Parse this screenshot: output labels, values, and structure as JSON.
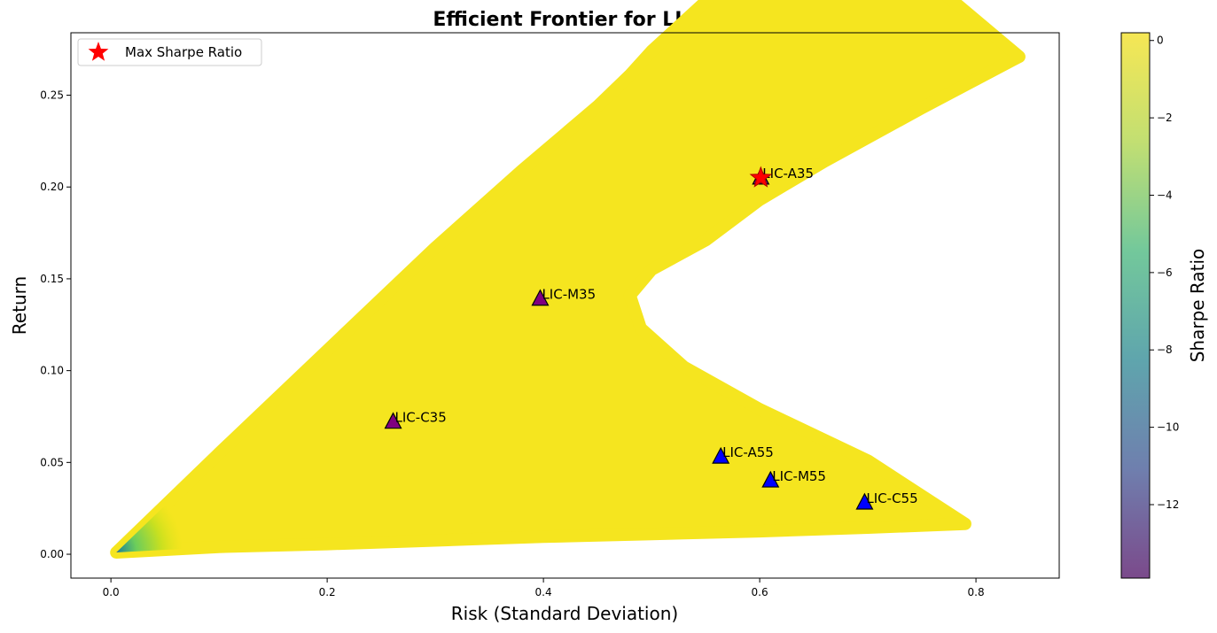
{
  "chart_data": {
    "type": "scatter",
    "title": "Efficient Frontier for LIC",
    "xlabel": "Risk (Standard Deviation)",
    "ylabel": "Return",
    "xlim": [
      -0.037,
      0.877
    ],
    "ylim": [
      -0.013,
      0.284
    ],
    "x_ticks": [
      "0.0",
      "0.2",
      "0.4",
      "0.6",
      "0.8"
    ],
    "y_ticks": [
      "0.00",
      "0.05",
      "0.10",
      "0.15",
      "0.20",
      "0.25"
    ],
    "grid": false,
    "legend": {
      "placement": "upper-left",
      "entries": [
        "Max Sharpe Ratio"
      ]
    },
    "colorbar": {
      "label": "Sharpe Ratio",
      "range": [
        -13.9,
        0.2
      ],
      "ticks": [
        "0",
        "−2",
        "−4",
        "−6",
        "−8",
        "−10",
        "−12"
      ],
      "colormap": "viridis"
    },
    "frontier_cloud": {
      "upper_edge": [
        [
          0.005,
          0.001
        ],
        [
          0.1,
          0.055
        ],
        [
          0.2,
          0.111
        ],
        [
          0.3,
          0.167
        ],
        [
          0.38,
          0.209
        ],
        [
          0.45,
          0.244
        ],
        [
          0.48,
          0.261
        ],
        [
          0.5,
          0.274
        ],
        [
          0.55,
          0.301
        ],
        [
          0.6,
          0.338
        ],
        [
          0.62,
          0.357
        ],
        [
          0.63,
          0.375
        ]
      ],
      "lower_edge": [
        [
          0.005,
          0.001
        ],
        [
          0.1,
          0.004
        ],
        [
          0.2,
          0.0055
        ],
        [
          0.3,
          0.0075
        ],
        [
          0.4,
          0.0095
        ],
        [
          0.5,
          0.011
        ],
        [
          0.6,
          0.0125
        ],
        [
          0.7,
          0.0145
        ],
        [
          0.79,
          0.0165
        ]
      ],
      "right_edge": [
        [
          0.84,
          0.271
        ],
        [
          0.75,
          0.243
        ],
        [
          0.66,
          0.214
        ],
        [
          0.6,
          0.193
        ],
        [
          0.55,
          0.171
        ],
        [
          0.5,
          0.155
        ],
        [
          0.48,
          0.141
        ],
        [
          0.49,
          0.123
        ],
        [
          0.53,
          0.102
        ],
        [
          0.6,
          0.079
        ],
        [
          0.7,
          0.051
        ],
        [
          0.79,
          0.0165
        ]
      ]
    },
    "max_sharpe": {
      "x": 0.601,
      "y": 0.205,
      "color": "#ff0000"
    },
    "funds": [
      {
        "label": "LIC-A35",
        "x": 0.601,
        "y": 0.205,
        "color": "#800080"
      },
      {
        "label": "LIC-M35",
        "x": 0.397,
        "y": 0.139,
        "color": "#800080"
      },
      {
        "label": "LIC-C35",
        "x": 0.261,
        "y": 0.072,
        "color": "#800080"
      },
      {
        "label": "LIC-A55",
        "x": 0.564,
        "y": 0.053,
        "color": "#0000ff"
      },
      {
        "label": "LIC-M55",
        "x": 0.61,
        "y": 0.04,
        "color": "#0000ff"
      },
      {
        "label": "LIC-C55",
        "x": 0.697,
        "y": 0.028,
        "color": "#0000ff"
      }
    ]
  }
}
